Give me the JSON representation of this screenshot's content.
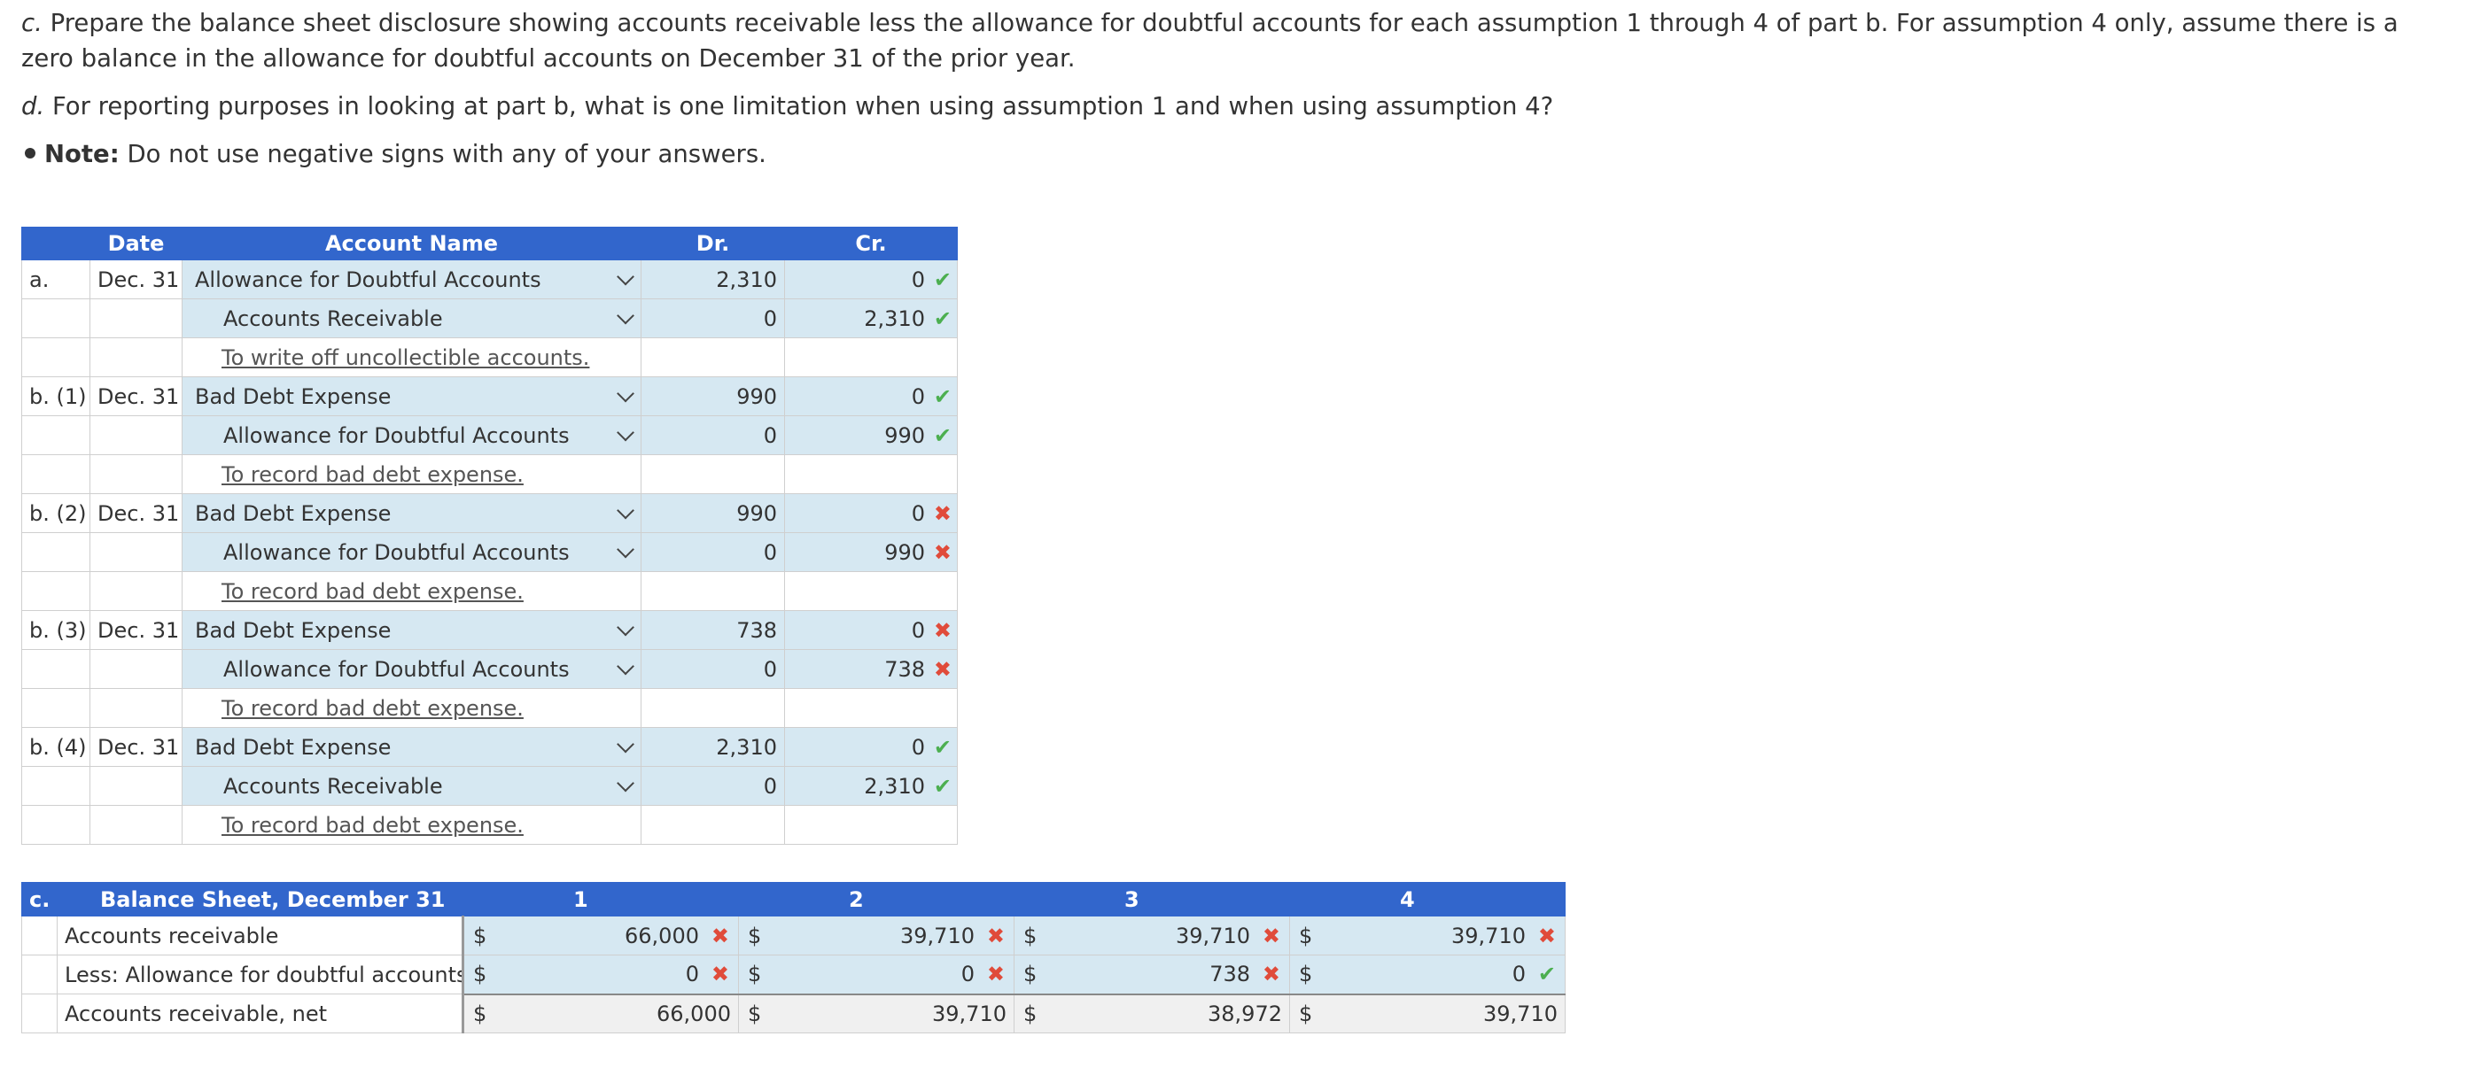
{
  "instructions": {
    "part_c_label": "c.",
    "part_c_text": " Prepare the balance sheet disclosure showing accounts receivable less the allowance for doubtful accounts for each assumption 1 through 4 of part b. For assumption 4 only, assume there is a zero balance in the allowance for doubtful accounts on December 31 of the prior year.",
    "part_d_label": "d.",
    "part_d_text": " For reporting purposes in looking at part b, what is one limitation when using assumption 1 and when using assumption 4?",
    "note_label": "Note:",
    "note_text": " Do not use negative signs with any of your answers."
  },
  "journal": {
    "headers": {
      "date": "Date",
      "account": "Account Name",
      "dr": "Dr.",
      "cr": "Cr."
    },
    "entries": [
      {
        "label": "a.",
        "date": "Dec. 31",
        "debit_account": "Allowance for Doubtful Accounts",
        "debit_dr": "2,310",
        "debit_cr": "0",
        "debit_status": "correct",
        "credit_account": "Accounts Receivable",
        "credit_dr": "0",
        "credit_cr": "2,310",
        "credit_status": "correct",
        "memo": "To write off uncollectible accounts."
      },
      {
        "label": "b. (1)",
        "date": "Dec. 31",
        "debit_account": "Bad Debt Expense",
        "debit_dr": "990",
        "debit_cr": "0",
        "debit_status": "correct",
        "credit_account": "Allowance for Doubtful Accounts",
        "credit_dr": "0",
        "credit_cr": "990",
        "credit_status": "correct",
        "memo": "To record bad debt expense."
      },
      {
        "label": "b. (2)",
        "date": "Dec. 31",
        "debit_account": "Bad Debt Expense",
        "debit_dr": "990",
        "debit_cr": "0",
        "debit_status": "incorrect",
        "credit_account": "Allowance for Doubtful Accounts",
        "credit_dr": "0",
        "credit_cr": "990",
        "credit_status": "incorrect",
        "memo": "To record bad debt expense."
      },
      {
        "label": "b. (3)",
        "date": "Dec. 31",
        "debit_account": "Bad Debt Expense",
        "debit_dr": "738",
        "debit_cr": "0",
        "debit_status": "incorrect",
        "credit_account": "Allowance for Doubtful Accounts",
        "credit_dr": "0",
        "credit_cr": "738",
        "credit_status": "incorrect",
        "memo": "To record bad debt expense."
      },
      {
        "label": "b. (4)",
        "date": "Dec. 31",
        "debit_account": "Bad Debt Expense",
        "debit_dr": "2,310",
        "debit_cr": "0",
        "debit_status": "correct",
        "credit_account": "Accounts Receivable",
        "credit_dr": "0",
        "credit_cr": "2,310",
        "credit_status": "correct",
        "memo": "To record bad debt expense."
      }
    ]
  },
  "balance_sheet": {
    "label": "c.",
    "title": "Balance Sheet, December 31",
    "columns": [
      "1",
      "2",
      "3",
      "4"
    ],
    "currency": "$",
    "rows": [
      {
        "desc": "Accounts receivable",
        "values": [
          "66,000",
          "39,710",
          "39,710",
          "39,710"
        ],
        "status": [
          "incorrect",
          "incorrect",
          "incorrect",
          "incorrect"
        ]
      },
      {
        "desc": "Less: Allowance for doubtful accounts",
        "values": [
          "0",
          "0",
          "738",
          "0"
        ],
        "status": [
          "incorrect",
          "incorrect",
          "incorrect",
          "correct"
        ]
      },
      {
        "desc": "Accounts receivable, net",
        "values": [
          "66,000",
          "39,710",
          "38,972",
          "39,710"
        ],
        "status": [
          "",
          "",
          "",
          ""
        ]
      }
    ]
  },
  "icons": {
    "correct": "checkmark-icon",
    "incorrect": "x-icon",
    "dropdown": "chevron-down-icon"
  },
  "colors": {
    "header_blue": "#3266cc",
    "input_fill": "#d6e8f2",
    "correct": "#4caf50",
    "incorrect": "#e04b3a"
  }
}
